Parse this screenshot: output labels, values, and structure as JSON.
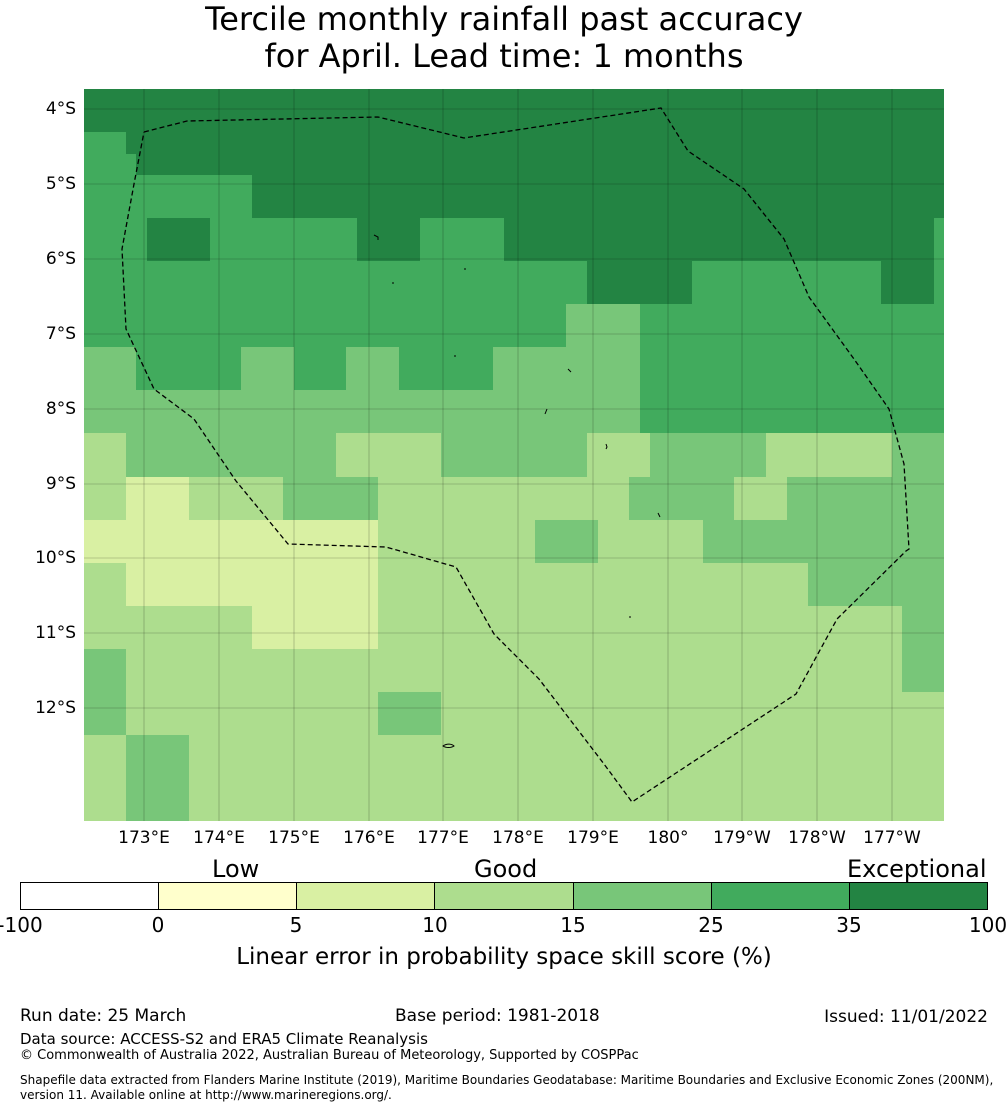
{
  "title_line1": "Tercile monthly rainfall past accuracy",
  "title_line2": "for April. Lead time: 1 months",
  "lat_labels": [
    "4°S",
    "5°S",
    "6°S",
    "7°S",
    "8°S",
    "9°S",
    "10°S",
    "11°S",
    "12°S"
  ],
  "lon_labels": [
    "173°E",
    "174°E",
    "175°E",
    "176°E",
    "177°E",
    "178°E",
    "179°E",
    "180°",
    "179°W",
    "178°W",
    "177°W"
  ],
  "grid": {
    "lon_range_deg_E": [
      172.19,
      183.66
    ],
    "lat_range_deg": [
      -3.75,
      -13.5
    ],
    "cell_size_deg": [
      0.833,
      0.556
    ],
    "rows": [
      "6666666666666666666666666666666666666666666666666666666666666666666666666666666666",
      "6666666666666666666666666666666666666666666666666666666666666666666666666666666666",
      "5555666666666666666666666666666666666666666666666666666666666666666666666666666666",
      "5555566666666666666666666666666666666666666666666666666666666666666666666666666666",
      "5555555555555555666666666666666666666666666666666666666666666666666666666666666666",
      "5555555555555555666666666666666666666666666666666666666666666666666666666666666666",
      "5555556666665555555555555566666655555555666666666666666666666666666666666666666665",
      "5555556666665555555555555566666655555555666666666666666666666666666666666666666665",
      "5555555555555555555555555555555555555555555555556666666666555555555555555555666665",
      "5555555555555555555555555555555555555555555555556666666666555555555555555555666665",
      "5555555555555555555555555555555555555555555555444444455555555555555555555555555555",
      "5555555555555555555555555555555555555555555555444444455555555555555555555555555555",
      "4444455555555554444455555444445555555554444444444444455555555555555555555555555555",
      "4444455555555554444455555444445555555554444444444444455555555555555555555555555555",
      "4444444444444444444444444444444444444444444444444444455555555555555555555555555555",
      "4444444444444444444444444444444444444444444444444444455555555555555555555555555555",
      "3333444444444444444444443333333333444444444444443333334444444444433333333333344444",
      "3333444444444444444444443333333333444444444444443333334444444444433333333333344444",
      "3333222222333333333444444444333333333333333333333333444444444433333444444444444444",
      "3333222222333333333444444444333333333333333333333333444444444433333444444444444444",
      "2222222222222222222222222222333333333333333444444333333333344444444444444444444444",
      "2222222222222222222222222222333333333333333444444333333333344444444444444444444444",
      "3333222222222222222222222222333333333333333333333333333333333333333334444444444444",
      "3333222222222222222222222222333333333333333333333333333333333333333334444444444444",
      "3333333333333333222222222222333333333333333333333333333333333333333333333333334444",
      "3333333333333333222222222222333333333333333333333333333333333333333333333333334444",
      "4444333333333333333333333333333333333333333333333333333333333333333333333333334444",
      "4444333333333333333333333333333333333333333333333333333333333333333333333333334444",
      "4444333333333333333333333333444444333333333333333333333333333333333333333333333333",
      "4444333333333333333333333333444444333333333333333333333333333333333333333333333333",
      "3333444444333333333333333333333333333333333333333333333333333333333333333333333333",
      "3333444444333333333333333333333333333333333333333333333333333333333333333333333333",
      "3333444444333333333333333333333333333333333333333333333333333333333333333333333333",
      "3333444444333333333333333333333333333333333333333333333333333333333333333333333333"
    ],
    "row_override_note": "",
    "category_colors": [
      "#ffffff",
      "#ffffcc",
      "#d9f0a3",
      "#addd8e",
      "#78c679",
      "#41ab5d",
      "#238443"
    ]
  },
  "colorbar": {
    "category_labels": [
      "Low",
      "Good",
      "Exceptional"
    ],
    "tick_labels": [
      "-100",
      "0",
      "5",
      "10",
      "15",
      "25",
      "35",
      "100"
    ],
    "colors": [
      "#ffffff",
      "#ffffcc",
      "#d9f0a3",
      "#addd8e",
      "#78c679",
      "#41ab5d",
      "#238443"
    ],
    "label": "Linear error in probability space skill score (%)"
  },
  "footer": {
    "run_date": "Run date: 25 March",
    "base_period": "Base period: 1981-2018",
    "issued": "Issued: 11/01/2022",
    "data_source": "Data source: ACCESS-S2 and ERA5 Climate Reanalysis",
    "copyright": "© Commonwealth of Australia 2022, Australian Bureau of Meteorology, Supported by COSPPac",
    "shapefile": "Shapefile data extracted from Flanders Marine Institute (2019), Maritime Boundaries Geodatabase: Maritime Boundaries and Exclusive Economic Zones (200NM), version 11. Available online at http://www.marineregions.org/."
  }
}
